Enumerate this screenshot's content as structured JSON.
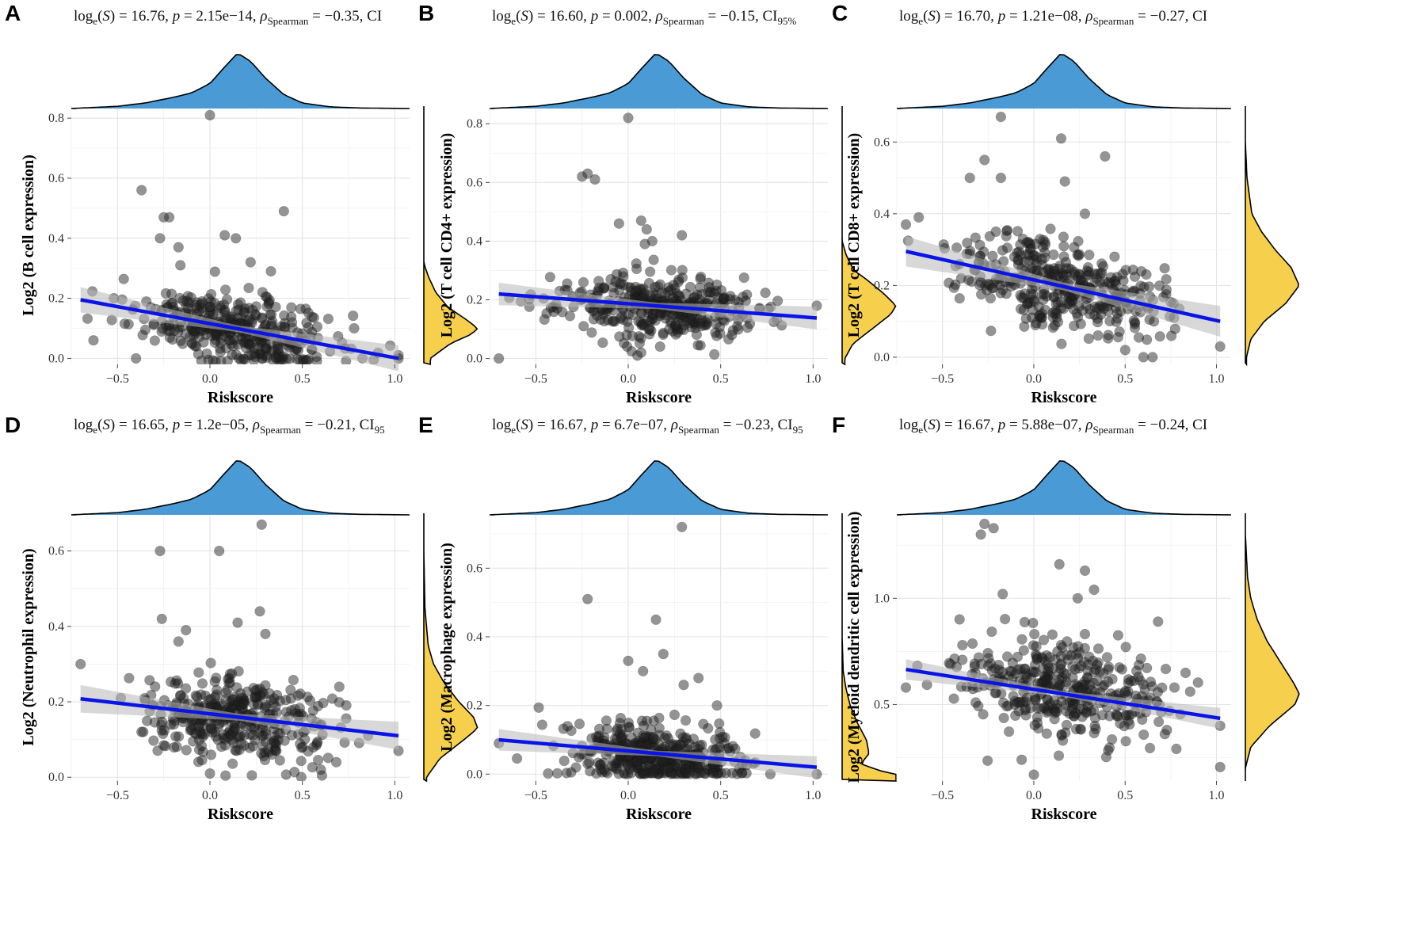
{
  "figure": {
    "colors": {
      "points": "#202020",
      "fit_line": "#0a14e6",
      "ci_band": "#b8b8b8",
      "top_density": "#4a9ad6",
      "right_density": "#f6d04d",
      "grid": "#e4e4e4"
    }
  },
  "chart_data": [
    {
      "panel": "A",
      "type": "scatter",
      "stats": {
        "prefix": "log",
        "sub_e": "e",
        "s_open": "(",
        "s_var": "S",
        "s_close": ") = 16.76, ",
        "p_var": "p",
        "p_rest": " = 2.15e−14, ",
        "rho": "ρ",
        "sub_sp": "Spearman",
        "rho_rest": " = −0.35, CI"
      },
      "xlabel": "Riskscore",
      "ylabel": "Log2 (B cell expression)",
      "xlim": [
        -0.75,
        1.08
      ],
      "ylim": [
        -0.02,
        0.84
      ],
      "xticks": [
        -0.5,
        0.0,
        0.5,
        1.0
      ],
      "xtick_labels": [
        "−0.5",
        "0.0",
        "0.5",
        "1.0"
      ],
      "yticks": [
        0.0,
        0.2,
        0.4,
        0.6,
        0.8
      ],
      "ytick_labels": [
        "0.0",
        "0.2",
        "0.4",
        "0.6",
        "0.8"
      ],
      "fit": {
        "x": [
          -0.7,
          1.02
        ],
        "y": [
          0.195,
          0.0
        ],
        "ci_x0": 0.03,
        "ci_x1": 0.04
      },
      "x_center": 0.15,
      "x_sd": 0.27,
      "y_center": 0.09,
      "y_sd": 0.08,
      "n_points": 380,
      "seed": 11,
      "outliers": [
        [
          0.0,
          0.81
        ],
        [
          -0.37,
          0.56
        ],
        [
          0.4,
          0.49
        ],
        [
          -0.25,
          0.47
        ],
        [
          -0.22,
          0.47
        ],
        [
          -0.27,
          0.4
        ],
        [
          -0.17,
          0.37
        ],
        [
          0.08,
          0.41
        ],
        [
          0.14,
          0.4
        ],
        [
          0.22,
          0.32
        ],
        [
          -0.16,
          0.31
        ],
        [
          0.33,
          0.29
        ],
        [
          -0.52,
          0.2
        ],
        [
          -0.63,
          0.06
        ],
        [
          0.78,
          0.1
        ],
        [
          1.02,
          0.01
        ],
        [
          0.55,
          0.03
        ],
        [
          -0.4,
          0.0
        ]
      ],
      "right_density": {
        "y": [
          0.0,
          0.05,
          0.08,
          0.1,
          0.13,
          0.17,
          0.22,
          0.27,
          0.3,
          0.32
        ],
        "d": [
          0.12,
          0.5,
          0.88,
          1.0,
          0.78,
          0.45,
          0.22,
          0.09,
          0.03,
          0.0
        ]
      }
    },
    {
      "panel": "B",
      "type": "scatter",
      "stats": {
        "prefix": "log",
        "sub_e": "e",
        "s_open": "(",
        "s_var": "S",
        "s_close": ") = 16.60, ",
        "p_var": "p",
        "p_rest": " = 0.002, ",
        "rho": "ρ",
        "sub_sp": "Spearman",
        "rho_rest": " = −0.15, CI",
        "ci_sub": "95%"
      },
      "xlabel": "Riskscore",
      "ylabel": "Log2 (T cell CD4+ expression)",
      "xlim": [
        -0.75,
        1.08
      ],
      "ylim": [
        -0.02,
        0.86
      ],
      "xticks": [
        -0.5,
        0.0,
        0.5,
        1.0
      ],
      "xtick_labels": [
        "−0.5",
        "0.0",
        "0.5",
        "1.0"
      ],
      "yticks": [
        0.0,
        0.2,
        0.4,
        0.6,
        0.8
      ],
      "ytick_labels": [
        "0.0",
        "0.2",
        "0.4",
        "0.6",
        "0.8"
      ],
      "fit": {
        "x": [
          -0.7,
          1.02
        ],
        "y": [
          0.22,
          0.138
        ],
        "ci_x0": 0.03,
        "ci_x1": 0.035
      },
      "x_center": 0.15,
      "x_sd": 0.27,
      "y_center": 0.17,
      "y_sd": 0.07,
      "n_points": 380,
      "seed": 23,
      "outliers": [
        [
          0.0,
          0.82
        ],
        [
          -0.22,
          0.63
        ],
        [
          -0.25,
          0.62
        ],
        [
          -0.18,
          0.61
        ],
        [
          -0.05,
          0.46
        ],
        [
          0.07,
          0.47
        ],
        [
          0.1,
          0.44
        ],
        [
          0.29,
          0.42
        ],
        [
          0.09,
          0.39
        ],
        [
          0.13,
          0.4
        ],
        [
          -0.7,
          0.0
        ],
        [
          1.02,
          0.18
        ],
        [
          0.05,
          0.01
        ],
        [
          0.07,
          0.02
        ]
      ],
      "right_density": {
        "y": [
          0.0,
          0.05,
          0.1,
          0.15,
          0.18,
          0.22,
          0.27,
          0.3,
          0.35,
          0.4
        ],
        "d": [
          0.05,
          0.2,
          0.55,
          0.9,
          1.0,
          0.78,
          0.45,
          0.22,
          0.08,
          0.0
        ]
      }
    },
    {
      "panel": "C",
      "type": "scatter",
      "stats": {
        "prefix": "log",
        "sub_e": "e",
        "s_open": "(",
        "s_var": "S",
        "s_close": ") = 16.70, ",
        "p_var": "p",
        "p_rest": " = 1.21e−08, ",
        "rho": "ρ",
        "sub_sp": "Spearman",
        "rho_rest": " = −0.27, CI"
      },
      "xlabel": "Riskscore",
      "ylabel": "Log2 (T cell CD8+ expression)",
      "xlim": [
        -0.75,
        1.08
      ],
      "ylim": [
        -0.02,
        0.7
      ],
      "xticks": [
        -0.5,
        0.0,
        0.5,
        1.0
      ],
      "xtick_labels": [
        "−0.5",
        "0.0",
        "0.5",
        "1.0"
      ],
      "yticks": [
        0.0,
        0.2,
        0.4,
        0.6
      ],
      "ytick_labels": [
        "0.0",
        "0.2",
        "0.4",
        "0.6"
      ],
      "fit": {
        "x": [
          -0.7,
          1.02
        ],
        "y": [
          0.295,
          0.1
        ],
        "ci_x0": 0.03,
        "ci_x1": 0.04
      },
      "x_center": 0.15,
      "x_sd": 0.27,
      "y_center": 0.21,
      "y_sd": 0.08,
      "n_points": 380,
      "seed": 37,
      "outliers": [
        [
          -0.18,
          0.67
        ],
        [
          0.15,
          0.61
        ],
        [
          0.39,
          0.56
        ],
        [
          -0.27,
          0.55
        ],
        [
          -0.35,
          0.5
        ],
        [
          -0.18,
          0.5
        ],
        [
          0.17,
          0.49
        ],
        [
          -0.63,
          0.39
        ],
        [
          -0.7,
          0.37
        ],
        [
          1.02,
          0.03
        ],
        [
          0.6,
          0.0
        ],
        [
          0.65,
          0.0
        ],
        [
          0.5,
          0.02
        ],
        [
          0.28,
          0.4
        ]
      ],
      "right_density": {
        "y": [
          0.0,
          0.05,
          0.1,
          0.15,
          0.2,
          0.25,
          0.3,
          0.35,
          0.4,
          0.5,
          0.6
        ],
        "d": [
          0.02,
          0.1,
          0.35,
          0.75,
          1.0,
          0.85,
          0.55,
          0.3,
          0.12,
          0.03,
          0.0
        ]
      }
    },
    {
      "panel": "D",
      "type": "scatter",
      "stats": {
        "prefix": "log",
        "sub_e": "e",
        "s_open": "(",
        "s_var": "S",
        "s_close": ") = 16.65, ",
        "p_var": "p",
        "p_rest": " = 1.2e−05, ",
        "rho": "ρ",
        "sub_sp": "Spearman",
        "rho_rest": " = −0.21, CI",
        "ci_sub": "95"
      },
      "xlabel": "Riskscore",
      "ylabel": "Log2 (Neutrophil expression)",
      "xlim": [
        -0.75,
        1.08
      ],
      "ylim": [
        -0.01,
        0.7
      ],
      "xticks": [
        -0.5,
        0.0,
        0.5,
        1.0
      ],
      "xtick_labels": [
        "−0.5",
        "0.0",
        "0.5",
        "1.0"
      ],
      "yticks": [
        0.0,
        0.2,
        0.4,
        0.6
      ],
      "ytick_labels": [
        "0.0",
        "0.2",
        "0.4",
        "0.6"
      ],
      "fit": {
        "x": [
          -0.7,
          1.02
        ],
        "y": [
          0.208,
          0.11
        ],
        "ci_x0": 0.025,
        "ci_x1": 0.035
      },
      "x_center": 0.15,
      "x_sd": 0.27,
      "y_center": 0.15,
      "y_sd": 0.07,
      "n_points": 380,
      "seed": 41,
      "outliers": [
        [
          0.28,
          0.67
        ],
        [
          -0.27,
          0.6
        ],
        [
          0.05,
          0.6
        ],
        [
          0.27,
          0.44
        ],
        [
          -0.26,
          0.42
        ],
        [
          0.15,
          0.41
        ],
        [
          -0.13,
          0.39
        ],
        [
          0.3,
          0.38
        ],
        [
          -0.17,
          0.36
        ],
        [
          -0.7,
          0.3
        ],
        [
          1.02,
          0.07
        ],
        [
          0.7,
          0.24
        ],
        [
          0.0,
          0.01
        ],
        [
          0.6,
          0.02
        ]
      ],
      "right_density": {
        "y": [
          0.0,
          0.05,
          0.1,
          0.13,
          0.16,
          0.2,
          0.25,
          0.3,
          0.35,
          0.45,
          0.6
        ],
        "d": [
          0.05,
          0.3,
          0.75,
          1.0,
          0.92,
          0.65,
          0.38,
          0.18,
          0.08,
          0.02,
          0.0
        ]
      }
    },
    {
      "panel": "E",
      "type": "scatter",
      "stats": {
        "prefix": "log",
        "sub_e": "e",
        "s_open": "(",
        "s_var": "S",
        "s_close": ") = 16.67, ",
        "p_var": "p",
        "p_rest": " = 6.7e−07, ",
        "rho": "ρ",
        "sub_sp": "Spearman",
        "rho_rest": " = −0.23, CI",
        "ci_sub": "95"
      },
      "xlabel": "Riskscore",
      "ylabel": "Log2 (Macrophage expression)",
      "xlim": [
        -0.75,
        1.08
      ],
      "ylim": [
        -0.02,
        0.76
      ],
      "xticks": [
        -0.5,
        0.0,
        0.5,
        1.0
      ],
      "xtick_labels": [
        "−0.5",
        "0.0",
        "0.5",
        "1.0"
      ],
      "yticks": [
        0.0,
        0.2,
        0.4,
        0.6
      ],
      "ytick_labels": [
        "0.0",
        "0.2",
        "0.4",
        "0.6"
      ],
      "fit": {
        "x": [
          -0.7,
          1.02
        ],
        "y": [
          0.1,
          0.02
        ],
        "ci_x0": 0.022,
        "ci_x1": 0.03
      },
      "x_center": 0.15,
      "x_sd": 0.25,
      "y_center": 0.05,
      "y_sd": 0.06,
      "floor_zero": true,
      "n_points": 420,
      "seed": 53,
      "outliers": [
        [
          0.29,
          0.72
        ],
        [
          -0.22,
          0.51
        ],
        [
          0.15,
          0.45
        ],
        [
          0.0,
          0.33
        ],
        [
          0.19,
          0.35
        ],
        [
          0.08,
          0.3
        ],
        [
          0.38,
          0.28
        ],
        [
          0.3,
          0.26
        ],
        [
          -0.7,
          0.09
        ],
        [
          1.02,
          0.0
        ],
        [
          0.48,
          0.2
        ]
      ],
      "right_density": {
        "y": [
          0.0,
          0.01,
          0.03,
          0.06,
          0.1,
          0.15,
          0.2,
          0.25,
          0.3,
          0.4
        ],
        "d": [
          1.0,
          0.7,
          0.35,
          0.5,
          0.45,
          0.28,
          0.15,
          0.07,
          0.02,
          0.0
        ]
      }
    },
    {
      "panel": "F",
      "type": "scatter",
      "stats": {
        "prefix": "log",
        "sub_e": "e",
        "s_open": "(",
        "s_var": "S",
        "s_close": ") = 16.67, ",
        "p_var": "p",
        "p_rest": " = 5.88e−07, ",
        "rho": "ρ",
        "sub_sp": "Spearman",
        "rho_rest": " = −0.24, CI"
      },
      "xlabel": "Riskscore",
      "ylabel": "Log2 (Myeloid dendritic cell expression)",
      "xlim": [
        -0.75,
        1.08
      ],
      "ylim": [
        0.14,
        1.4
      ],
      "xticks": [
        -0.5,
        0.0,
        0.5,
        1.0
      ],
      "xtick_labels": [
        "−0.5",
        "0.0",
        "0.5",
        "1.0"
      ],
      "yticks": [
        0.5,
        1.0
      ],
      "ytick_labels": [
        "0.5",
        "1.0"
      ],
      "fit": {
        "x": [
          -0.7,
          1.02
        ],
        "y": [
          0.665,
          0.435
        ],
        "ci_x0": 0.035,
        "ci_x1": 0.045
      },
      "x_center": 0.15,
      "x_sd": 0.27,
      "y_center": 0.57,
      "y_sd": 0.15,
      "n_points": 380,
      "seed": 67,
      "outliers": [
        [
          -0.27,
          1.35
        ],
        [
          -0.22,
          1.33
        ],
        [
          -0.29,
          1.3
        ],
        [
          0.14,
          1.16
        ],
        [
          0.28,
          1.13
        ],
        [
          0.33,
          1.04
        ],
        [
          -0.17,
          1.02
        ],
        [
          0.24,
          1.0
        ],
        [
          0.0,
          0.17
        ],
        [
          1.02,
          0.4
        ],
        [
          0.77,
          0.58
        ],
        [
          0.68,
          0.89
        ],
        [
          -0.7,
          0.58
        ]
      ],
      "right_density": {
        "y": [
          0.2,
          0.3,
          0.4,
          0.5,
          0.55,
          0.6,
          0.7,
          0.8,
          0.9,
          1.0,
          1.1,
          1.3
        ],
        "d": [
          0.0,
          0.1,
          0.45,
          0.92,
          1.0,
          0.9,
          0.65,
          0.4,
          0.22,
          0.1,
          0.04,
          0.0
        ]
      }
    }
  ]
}
